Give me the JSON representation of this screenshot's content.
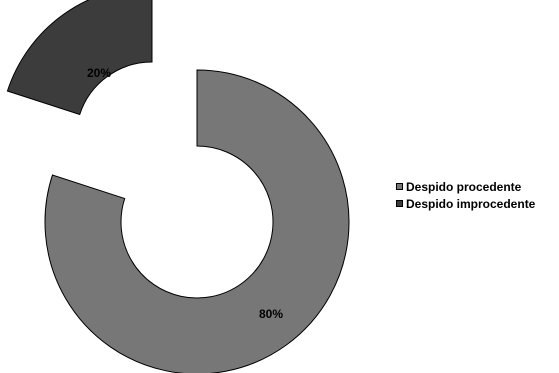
{
  "chart_data": {
    "type": "pie",
    "variant": "exploded-donut",
    "categories": [
      "Despido procedente",
      "Despido improcedente"
    ],
    "values": [
      80,
      20
    ],
    "data_labels": [
      "80%",
      "20%"
    ],
    "colors": [
      "#777777",
      "#3c3c3c"
    ],
    "legend": "right",
    "title": ""
  }
}
